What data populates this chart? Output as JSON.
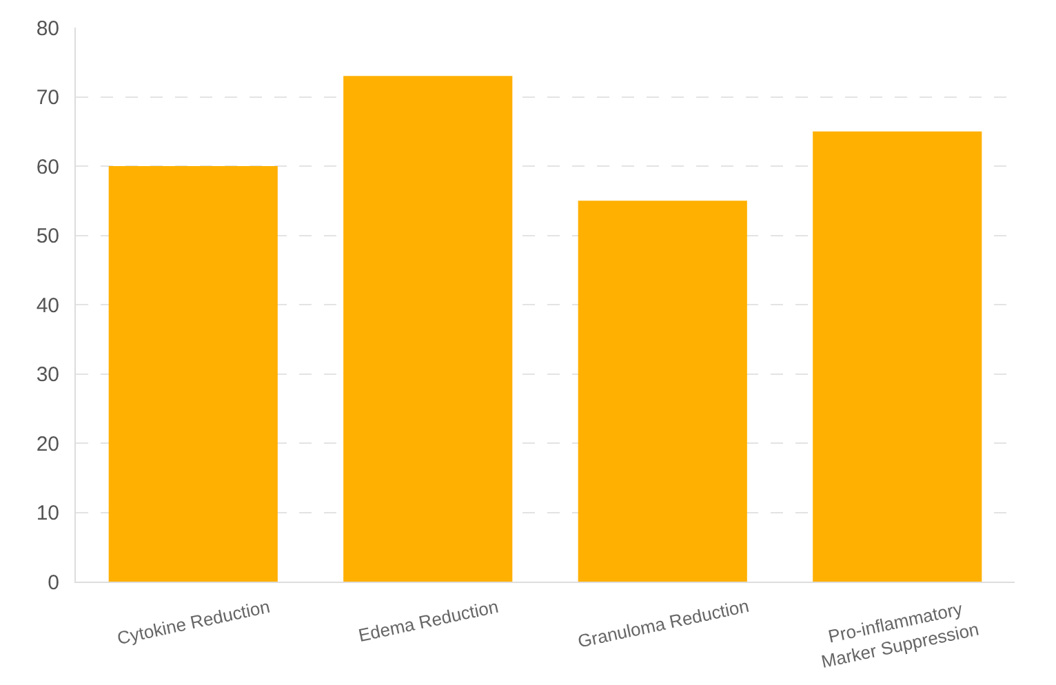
{
  "chart_data": {
    "type": "bar",
    "categories": [
      "Cytokine Reduction",
      "Edema Reduction",
      "Granuloma Reduction",
      "Pro-inflammatory Marker Suppression"
    ],
    "values": [
      60,
      73,
      55,
      65
    ],
    "color": "#ffb000",
    "ylim": [
      0,
      80
    ],
    "yticks": [
      0,
      10,
      20,
      30,
      40,
      50,
      60,
      70,
      80
    ],
    "grid": "y",
    "legend": false
  }
}
